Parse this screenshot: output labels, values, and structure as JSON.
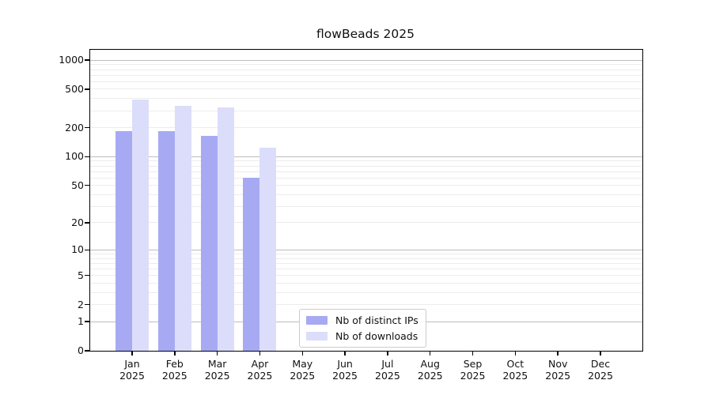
{
  "title": "flowBeads 2025",
  "chart_data": {
    "type": "bar",
    "title": "flowBeads 2025",
    "scale": "log1p",
    "grid": true,
    "ylim": [
      0,
      1280
    ],
    "yticks": [
      0,
      1,
      2,
      5,
      10,
      20,
      50,
      100,
      200,
      500,
      1000
    ],
    "major_grid_values": [
      1,
      10,
      100,
      1000
    ],
    "categories": [
      "Jan 2025",
      "Feb 2025",
      "Mar 2025",
      "Apr 2025",
      "May 2025",
      "Jun 2025",
      "Jul 2025",
      "Aug 2025",
      "Sep 2025",
      "Oct 2025",
      "Nov 2025",
      "Dec 2025"
    ],
    "series": [
      {
        "name": "Nb of distinct IPs",
        "color": "#a7aaf2",
        "values": [
          185,
          185,
          165,
          60,
          0,
          0,
          0,
          0,
          0,
          0,
          0,
          0
        ]
      },
      {
        "name": "Nb of downloads",
        "color": "#dcddfa",
        "values": [
          395,
          335,
          325,
          125,
          0,
          0,
          0,
          0,
          0,
          0,
          0,
          0
        ]
      }
    ],
    "legend_position": "bottom-center"
  },
  "colors": {
    "minor_grid": "#ececec",
    "major_grid": "#bdbdbd",
    "axis": "#000000",
    "text": "#111111",
    "legend_border": "#cccccc"
  }
}
